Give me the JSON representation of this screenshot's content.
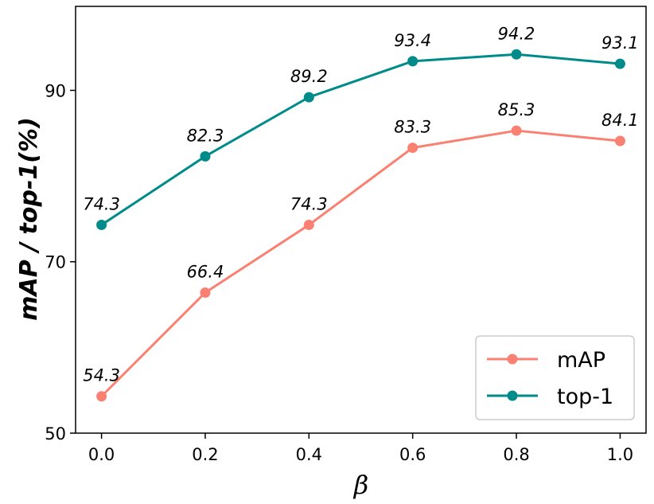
{
  "chart_data": {
    "type": "line",
    "title": "",
    "xlabel": "β",
    "ylabel": "mAP / top-1(%)",
    "x": [
      0.0,
      0.2,
      0.4,
      0.6,
      0.8,
      1.0
    ],
    "x_tick_labels": [
      "0.0",
      "0.2",
      "0.4",
      "0.6",
      "0.8",
      "1.0"
    ],
    "y_ticks": [
      50,
      70,
      90
    ],
    "y_tick_labels": [
      "50",
      "70",
      "90"
    ],
    "xlim": [
      -0.05,
      1.05
    ],
    "ylim": [
      50,
      99.8
    ],
    "grid": false,
    "legend_position": "lower-right",
    "series": [
      {
        "name": "mAP",
        "color": "#fa8072",
        "values": [
          54.3,
          66.4,
          74.3,
          83.3,
          85.3,
          84.1
        ],
        "labels": [
          "54.3",
          "66.4",
          "74.3",
          "83.3",
          "85.3",
          "84.1"
        ]
      },
      {
        "name": "top-1",
        "color": "#008b8b",
        "values": [
          74.3,
          82.3,
          89.2,
          93.4,
          94.2,
          93.1
        ],
        "labels": [
          "74.3",
          "82.3",
          "89.2",
          "93.4",
          "94.2",
          "93.1"
        ]
      }
    ]
  }
}
